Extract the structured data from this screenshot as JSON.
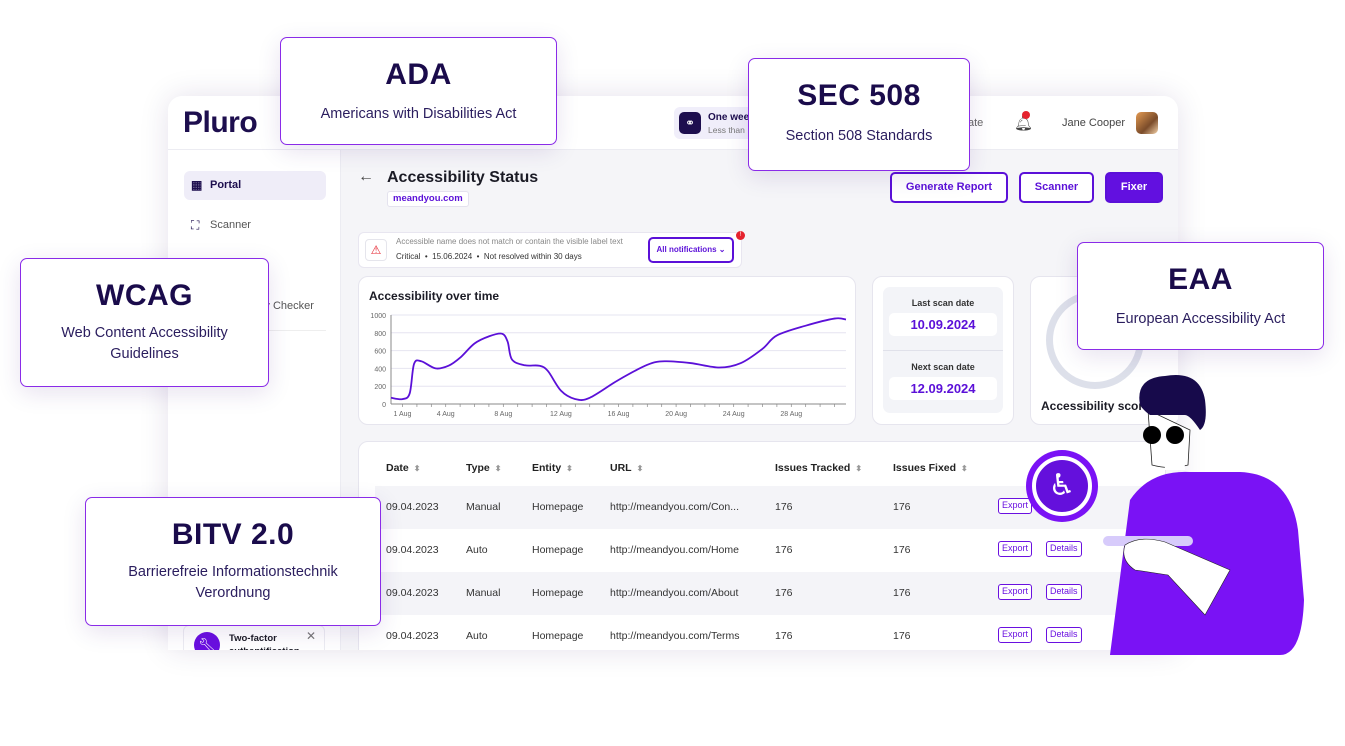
{
  "header": {
    "logo": "Pluro",
    "trial_title": "One wee",
    "trial_sub": "Less than",
    "update_fragment": "ate",
    "user_name": "Jane Cooper",
    "notification_count": "1"
  },
  "sidebar": {
    "items": [
      {
        "label": "Portal",
        "icon": "grid-icon",
        "active": true
      },
      {
        "label": "Scanner",
        "icon": "scan-icon"
      },
      {
        "label": "Accessibility Checker",
        "icon": "check-icon"
      }
    ],
    "toast": {
      "title": "Two-factor",
      "subtitle": "authentification",
      "icon": "wrench-icon"
    }
  },
  "page": {
    "title": "Accessibility Status",
    "domain": "meandyou.com",
    "buttons": {
      "generate": "Generate Report",
      "scanner": "Scanner",
      "fixer": "Fixer"
    },
    "notification": {
      "message": "Accessible name does not match or contain the visible label text",
      "severity": "Critical",
      "date": "15.06.2024",
      "status": "Not resolved within 30 days",
      "dropdown": "All notifications ⌄",
      "badge": "!"
    }
  },
  "scan": {
    "last_label": "Last scan date",
    "last_value": "10.09.2024",
    "next_label": "Next scan date",
    "next_value": "12.09.2024"
  },
  "score": {
    "label": "Accessibility score"
  },
  "chart_data": {
    "type": "line",
    "title": "Accessibility over time",
    "xlabel": "",
    "ylabel": "",
    "ylim": [
      0,
      1000
    ],
    "yticks": [
      "0",
      "200",
      "400",
      "600",
      "800",
      "1000"
    ],
    "xticks": [
      {
        "day": 1,
        "label": "1 Aug"
      },
      {
        "day": 4,
        "label": "4 Aug"
      },
      {
        "day": 8,
        "label": "8 Aug"
      },
      {
        "day": 12,
        "label": "12 Aug"
      },
      {
        "day": 16,
        "label": "16 Aug"
      },
      {
        "day": 20,
        "label": "20 Aug"
      },
      {
        "day": 24,
        "label": "24 Aug"
      },
      {
        "day": 28,
        "label": "28 Aug"
      }
    ],
    "xlim": [
      0.2,
      31.8
    ],
    "grid": true,
    "color": "#5b10d8",
    "points": [
      [
        0.2,
        70
      ],
      [
        1,
        55
      ],
      [
        1.5,
        120
      ],
      [
        1.8,
        450
      ],
      [
        2.3,
        480
      ],
      [
        3.3,
        400
      ],
      [
        4.2,
        430
      ],
      [
        5,
        520
      ],
      [
        6,
        680
      ],
      [
        7,
        760
      ],
      [
        7.9,
        790
      ],
      [
        8.3,
        700
      ],
      [
        8.6,
        500
      ],
      [
        9.5,
        435
      ],
      [
        10.5,
        430
      ],
      [
        11.1,
        370
      ],
      [
        12,
        150
      ],
      [
        13,
        55
      ],
      [
        14,
        70
      ],
      [
        16,
        270
      ],
      [
        18,
        440
      ],
      [
        19.2,
        480
      ],
      [
        21,
        460
      ],
      [
        23,
        410
      ],
      [
        24.5,
        460
      ],
      [
        26,
        620
      ],
      [
        27,
        770
      ],
      [
        29,
        880
      ],
      [
        31,
        960
      ],
      [
        31.8,
        950
      ]
    ]
  },
  "table": {
    "headers": [
      "Date",
      "Type",
      "Entity",
      "URL",
      "Issues Tracked",
      "Issues Fixed"
    ],
    "rows": [
      {
        "date": "09.04.2023",
        "type": "Manual",
        "entity": "Homepage",
        "url": "http://meandyou.com/Con...",
        "tracked": "176",
        "fixed": "176"
      },
      {
        "date": "09.04.2023",
        "type": "Auto",
        "entity": "Homepage",
        "url": "http://meandyou.com/Home",
        "tracked": "176",
        "fixed": "176"
      },
      {
        "date": "09.04.2023",
        "type": "Manual",
        "entity": "Homepage",
        "url": "http://meandyou.com/About",
        "tracked": "176",
        "fixed": "176"
      },
      {
        "date": "09.04.2023",
        "type": "Auto",
        "entity": "Homepage",
        "url": "http://meandyou.com/Terms",
        "tracked": "176",
        "fixed": "176"
      }
    ],
    "export_label": "Export",
    "details_label": "Details"
  },
  "overlays": {
    "ada": {
      "title": "ADA",
      "subtitle": "Americans with Disabilities Act"
    },
    "sec": {
      "title": "SEC 508",
      "subtitle": "Section 508 Standards"
    },
    "wcag": {
      "title": "WCAG",
      "subtitle": "Web Content Accessibility Guidelines"
    },
    "bitv": {
      "title": "BITV 2.0",
      "subtitle": "Barrierefreie Informationstechnik Verordnung"
    },
    "eaa": {
      "title": "EAA",
      "subtitle": "European Accessibility Act"
    }
  },
  "colors": {
    "brand": "#5b10d8",
    "navy": "#1a0b4b",
    "alert": "#e5232e",
    "illustration": "#7a12f5"
  }
}
